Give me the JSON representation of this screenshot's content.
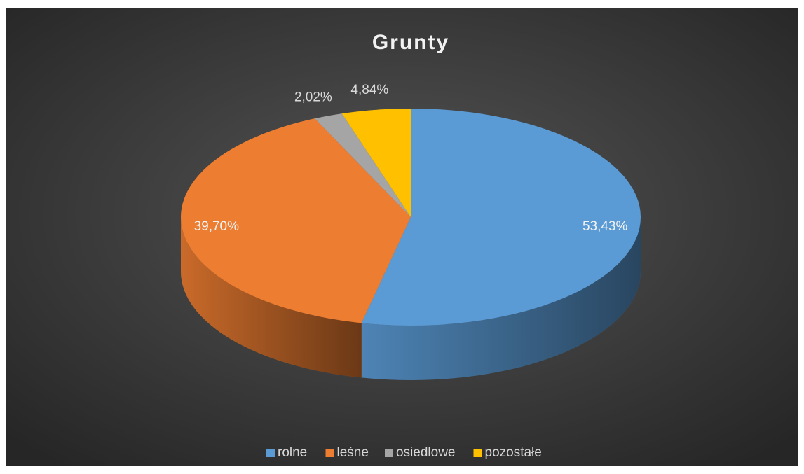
{
  "chart_data": {
    "type": "pie",
    "title": "Grunty",
    "categories": [
      "rolne",
      "leśne",
      "osiedlowe",
      "pozostałe"
    ],
    "values": [
      53.43,
      39.7,
      2.02,
      4.84
    ],
    "value_labels": [
      "53,43%",
      "39,70%",
      "2,02%",
      "4,84%"
    ],
    "colors": [
      "#5b9bd5",
      "#ed7d31",
      "#a5a5a5",
      "#ffc000"
    ],
    "legend": "bottom"
  }
}
